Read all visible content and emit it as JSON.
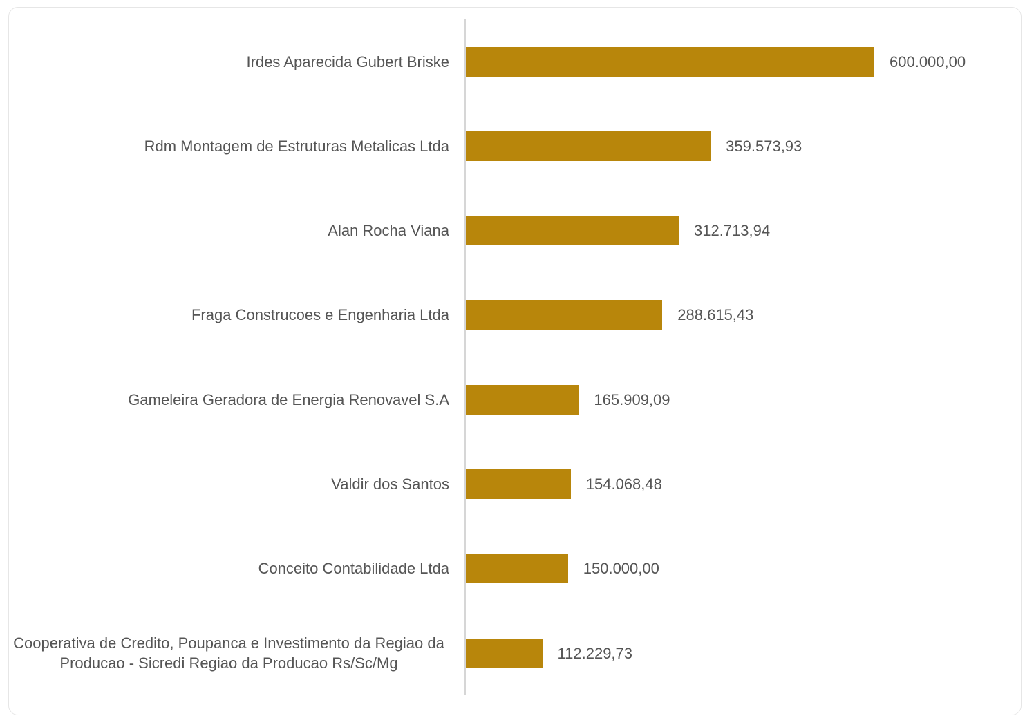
{
  "chart_data": {
    "type": "bar",
    "orientation": "horizontal",
    "color": "#b8860b",
    "categories": [
      "Irdes Aparecida Gubert Briske",
      "Rdm Montagem de Estruturas Metalicas Ltda",
      "Alan Rocha Viana",
      "Fraga Construcoes e Engenharia Ltda",
      "Gameleira Geradora de Energia Renovavel S.A",
      "Valdir dos Santos",
      "Conceito Contabilidade Ltda",
      "Cooperativa de Credito, Poupanca e Investimento da Regiao da Producao - Sicredi Regiao da Producao Rs/Sc/Mg"
    ],
    "values": [
      600000.0,
      359573.93,
      312713.94,
      288615.43,
      165909.09,
      154068.48,
      150000.0,
      112229.73
    ],
    "value_labels": [
      "600.000,00",
      "359.573,93",
      "312.713,94",
      "288.615,43",
      "165.909,09",
      "154.068,48",
      "150.000,00",
      "112.229,73"
    ]
  }
}
